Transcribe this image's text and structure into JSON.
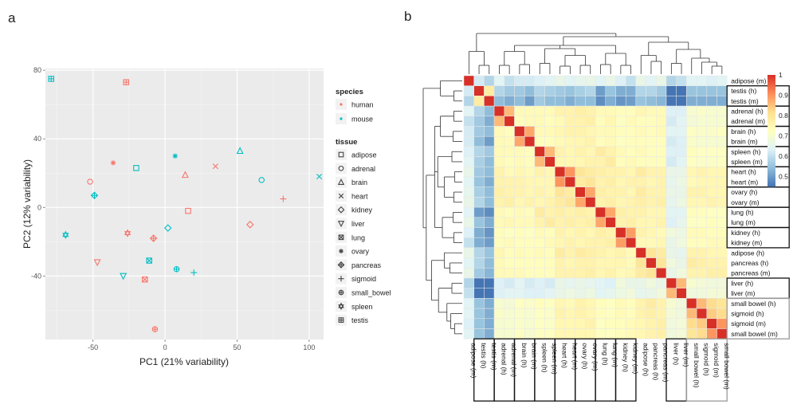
{
  "panels": {
    "a": "a",
    "b": "b"
  },
  "chart_data": [
    {
      "type": "scatter",
      "xlabel": "PC1 (21% variability)",
      "ylabel": "PC2 (12% variability)",
      "xlim": [
        -83,
        110
      ],
      "ylim": [
        -77,
        81
      ],
      "xticks": [
        -50,
        0,
        50,
        100
      ],
      "yticks": [
        -40,
        0,
        40,
        80
      ],
      "grid": true,
      "legend_placement": "right",
      "colors": {
        "human": "#f8766d",
        "mouse": "#00bfc4",
        "panel_bg": "#ebebeb"
      },
      "legend": {
        "species_title": "species",
        "species": [
          "human",
          "mouse"
        ],
        "tissue_title": "tissue",
        "tissues": [
          {
            "name": "adipose",
            "shape": "square"
          },
          {
            "name": "adrenal",
            "shape": "circle"
          },
          {
            "name": "brain",
            "shape": "triangle"
          },
          {
            "name": "heart",
            "shape": "cross"
          },
          {
            "name": "kidney",
            "shape": "diamond"
          },
          {
            "name": "liver",
            "shape": "triangle-down"
          },
          {
            "name": "lung",
            "shape": "square-x"
          },
          {
            "name": "ovary",
            "shape": "asterisk"
          },
          {
            "name": "pancreas",
            "shape": "diamond-plus"
          },
          {
            "name": "sigmoid",
            "shape": "plus"
          },
          {
            "name": "small_bowel",
            "shape": "circle-plus"
          },
          {
            "name": "spleen",
            "shape": "star"
          },
          {
            "name": "testis",
            "shape": "square-plus"
          }
        ]
      },
      "points": [
        {
          "species": "human",
          "tissue": "adipose",
          "x": 16,
          "y": -2
        },
        {
          "species": "mouse",
          "tissue": "adipose",
          "x": -20,
          "y": 23
        },
        {
          "species": "human",
          "tissue": "adrenal",
          "x": -52,
          "y": 15
        },
        {
          "species": "mouse",
          "tissue": "adrenal",
          "x": 67,
          "y": 16
        },
        {
          "species": "human",
          "tissue": "brain",
          "x": 14,
          "y": 19
        },
        {
          "species": "mouse",
          "tissue": "brain",
          "x": 52,
          "y": 33
        },
        {
          "species": "human",
          "tissue": "heart",
          "x": 35,
          "y": 24
        },
        {
          "species": "mouse",
          "tissue": "heart",
          "x": 107,
          "y": 18
        },
        {
          "species": "human",
          "tissue": "kidney",
          "x": 59,
          "y": -10
        },
        {
          "species": "mouse",
          "tissue": "kidney",
          "x": 2,
          "y": -12
        },
        {
          "species": "human",
          "tissue": "liver",
          "x": -47,
          "y": -32
        },
        {
          "species": "mouse",
          "tissue": "liver",
          "x": -29,
          "y": -40
        },
        {
          "species": "human",
          "tissue": "lung",
          "x": -14,
          "y": -42
        },
        {
          "species": "mouse",
          "tissue": "lung",
          "x": -11,
          "y": -31
        },
        {
          "species": "human",
          "tissue": "ovary",
          "x": -36,
          "y": 26
        },
        {
          "species": "mouse",
          "tissue": "ovary",
          "x": 7,
          "y": 30
        },
        {
          "species": "human",
          "tissue": "pancreas",
          "x": -8,
          "y": -18
        },
        {
          "species": "mouse",
          "tissue": "pancreas",
          "x": -49,
          "y": 7
        },
        {
          "species": "human",
          "tissue": "sigmoid",
          "x": 82,
          "y": 5
        },
        {
          "species": "mouse",
          "tissue": "sigmoid",
          "x": 20,
          "y": -38
        },
        {
          "species": "human",
          "tissue": "small_bowel",
          "x": -7,
          "y": -71
        },
        {
          "species": "mouse",
          "tissue": "small_bowel",
          "x": 8,
          "y": -36
        },
        {
          "species": "human",
          "tissue": "spleen",
          "x": -26,
          "y": -15
        },
        {
          "species": "mouse",
          "tissue": "spleen",
          "x": -69,
          "y": -16
        },
        {
          "species": "human",
          "tissue": "testis",
          "x": -27,
          "y": 73
        },
        {
          "species": "mouse",
          "tissue": "testis",
          "x": -79,
          "y": 75
        }
      ]
    },
    {
      "type": "heatmap",
      "rows": [
        "adipose (m)",
        "testis (h)",
        "testis (m)",
        "adrenal (h)",
        "adrenal (m)",
        "brain (h)",
        "brain (m)",
        "spleen (h)",
        "spleen (m)",
        "heart (h)",
        "heart (m)",
        "ovary (h)",
        "ovary (m)",
        "lung (h)",
        "lung (m)",
        "kidney (h)",
        "kidney (m)",
        "adipose (h)",
        "pancreas (h)",
        "pancreas (m)",
        "liver (h)",
        "liver (m)",
        "small bowel (h)",
        "sigmoid (h)",
        "sigmoid (m)",
        "small bowel (m)"
      ],
      "columns": [
        "adipose (m)",
        "testis (h)",
        "testis (m)",
        "adrenal (h)",
        "adrenal (m)",
        "brain (h)",
        "brain (m)",
        "spleen (h)",
        "spleen (m)",
        "heart (h)",
        "heart (m)",
        "ovary (h)",
        "ovary (m)",
        "lung (h)",
        "lung (m)",
        "kidney (h)",
        "kidney (m)",
        "adipose (h)",
        "pancreas (h)",
        "pancreas (m)",
        "liver (h)",
        "liver (m)",
        "small bowel (h)",
        "sigmoid (h)",
        "sigmoid (m)",
        "small bowel (m)"
      ],
      "values": [
        [
          1.0,
          0.62,
          0.58,
          0.64,
          0.6,
          0.62,
          0.62,
          0.63,
          0.64,
          0.66,
          0.64,
          0.65,
          0.66,
          0.64,
          0.66,
          0.63,
          0.6,
          0.66,
          0.64,
          0.66,
          0.58,
          0.6,
          0.64,
          0.64,
          0.63,
          0.64
        ],
        [
          0.62,
          1.0,
          0.78,
          0.58,
          0.56,
          0.56,
          0.54,
          0.58,
          0.57,
          0.56,
          0.55,
          0.57,
          0.58,
          0.5,
          0.55,
          0.52,
          0.52,
          0.58,
          0.58,
          0.56,
          0.42,
          0.44,
          0.55,
          0.55,
          0.55,
          0.55
        ],
        [
          0.58,
          0.78,
          1.0,
          0.54,
          0.52,
          0.54,
          0.5,
          0.56,
          0.54,
          0.54,
          0.52,
          0.54,
          0.54,
          0.48,
          0.52,
          0.49,
          0.5,
          0.55,
          0.54,
          0.53,
          0.4,
          0.42,
          0.52,
          0.52,
          0.52,
          0.52
        ],
        [
          0.64,
          0.58,
          0.54,
          1.0,
          0.86,
          0.74,
          0.74,
          0.74,
          0.74,
          0.76,
          0.76,
          0.77,
          0.76,
          0.74,
          0.74,
          0.73,
          0.73,
          0.75,
          0.74,
          0.74,
          0.63,
          0.63,
          0.7,
          0.71,
          0.7,
          0.7
        ],
        [
          0.6,
          0.56,
          0.52,
          0.86,
          1.0,
          0.73,
          0.74,
          0.74,
          0.73,
          0.74,
          0.76,
          0.76,
          0.77,
          0.73,
          0.75,
          0.72,
          0.74,
          0.73,
          0.73,
          0.74,
          0.62,
          0.64,
          0.69,
          0.7,
          0.7,
          0.7
        ],
        [
          0.62,
          0.56,
          0.54,
          0.74,
          0.73,
          1.0,
          0.88,
          0.74,
          0.74,
          0.75,
          0.76,
          0.76,
          0.75,
          0.74,
          0.74,
          0.73,
          0.73,
          0.74,
          0.73,
          0.74,
          0.64,
          0.64,
          0.72,
          0.71,
          0.71,
          0.72
        ],
        [
          0.62,
          0.54,
          0.5,
          0.74,
          0.74,
          0.88,
          1.0,
          0.73,
          0.73,
          0.74,
          0.75,
          0.75,
          0.76,
          0.73,
          0.74,
          0.72,
          0.73,
          0.73,
          0.73,
          0.73,
          0.62,
          0.63,
          0.71,
          0.7,
          0.7,
          0.7
        ],
        [
          0.63,
          0.58,
          0.56,
          0.74,
          0.74,
          0.74,
          0.73,
          1.0,
          0.86,
          0.76,
          0.75,
          0.76,
          0.75,
          0.78,
          0.76,
          0.74,
          0.73,
          0.74,
          0.73,
          0.73,
          0.63,
          0.63,
          0.73,
          0.72,
          0.72,
          0.72
        ],
        [
          0.64,
          0.57,
          0.54,
          0.74,
          0.73,
          0.74,
          0.73,
          0.86,
          1.0,
          0.75,
          0.75,
          0.75,
          0.76,
          0.76,
          0.78,
          0.73,
          0.74,
          0.73,
          0.73,
          0.73,
          0.62,
          0.64,
          0.72,
          0.71,
          0.71,
          0.72
        ],
        [
          0.66,
          0.56,
          0.54,
          0.76,
          0.74,
          0.75,
          0.74,
          0.76,
          0.75,
          1.0,
          0.9,
          0.8,
          0.78,
          0.77,
          0.76,
          0.76,
          0.75,
          0.78,
          0.76,
          0.76,
          0.66,
          0.66,
          0.75,
          0.76,
          0.75,
          0.75
        ],
        [
          0.64,
          0.55,
          0.52,
          0.76,
          0.76,
          0.76,
          0.75,
          0.75,
          0.75,
          0.9,
          1.0,
          0.78,
          0.8,
          0.76,
          0.77,
          0.75,
          0.76,
          0.76,
          0.75,
          0.76,
          0.65,
          0.67,
          0.74,
          0.75,
          0.75,
          0.75
        ],
        [
          0.65,
          0.57,
          0.54,
          0.77,
          0.76,
          0.76,
          0.75,
          0.76,
          0.75,
          0.8,
          0.78,
          1.0,
          0.88,
          0.77,
          0.76,
          0.76,
          0.75,
          0.78,
          0.76,
          0.76,
          0.66,
          0.66,
          0.76,
          0.76,
          0.75,
          0.75
        ],
        [
          0.66,
          0.58,
          0.54,
          0.76,
          0.77,
          0.75,
          0.76,
          0.75,
          0.76,
          0.78,
          0.8,
          0.88,
          1.0,
          0.76,
          0.77,
          0.75,
          0.76,
          0.77,
          0.76,
          0.77,
          0.65,
          0.67,
          0.75,
          0.75,
          0.76,
          0.75
        ],
        [
          0.64,
          0.5,
          0.48,
          0.74,
          0.73,
          0.74,
          0.73,
          0.78,
          0.76,
          0.77,
          0.76,
          0.77,
          0.76,
          1.0,
          0.88,
          0.77,
          0.76,
          0.76,
          0.75,
          0.75,
          0.64,
          0.64,
          0.73,
          0.73,
          0.72,
          0.72
        ],
        [
          0.66,
          0.55,
          0.52,
          0.74,
          0.75,
          0.74,
          0.74,
          0.76,
          0.78,
          0.76,
          0.77,
          0.76,
          0.77,
          0.88,
          1.0,
          0.76,
          0.77,
          0.75,
          0.75,
          0.76,
          0.63,
          0.65,
          0.72,
          0.72,
          0.73,
          0.72
        ],
        [
          0.63,
          0.52,
          0.49,
          0.73,
          0.72,
          0.73,
          0.72,
          0.74,
          0.73,
          0.76,
          0.75,
          0.76,
          0.75,
          0.77,
          0.76,
          1.0,
          0.89,
          0.76,
          0.75,
          0.74,
          0.68,
          0.67,
          0.74,
          0.74,
          0.73,
          0.73
        ],
        [
          0.6,
          0.52,
          0.5,
          0.73,
          0.74,
          0.73,
          0.73,
          0.73,
          0.74,
          0.75,
          0.76,
          0.75,
          0.76,
          0.76,
          0.77,
          0.89,
          1.0,
          0.74,
          0.74,
          0.75,
          0.66,
          0.68,
          0.73,
          0.73,
          0.74,
          0.74
        ],
        [
          0.66,
          0.58,
          0.55,
          0.75,
          0.73,
          0.74,
          0.73,
          0.74,
          0.73,
          0.78,
          0.76,
          0.78,
          0.77,
          0.76,
          0.75,
          0.76,
          0.74,
          1.0,
          0.8,
          0.78,
          0.66,
          0.65,
          0.76,
          0.76,
          0.75,
          0.75
        ],
        [
          0.64,
          0.58,
          0.54,
          0.74,
          0.73,
          0.73,
          0.73,
          0.73,
          0.73,
          0.76,
          0.75,
          0.76,
          0.76,
          0.75,
          0.75,
          0.75,
          0.74,
          0.8,
          1.0,
          0.8,
          0.68,
          0.66,
          0.78,
          0.77,
          0.76,
          0.76
        ],
        [
          0.66,
          0.56,
          0.53,
          0.74,
          0.74,
          0.74,
          0.73,
          0.73,
          0.73,
          0.76,
          0.76,
          0.76,
          0.77,
          0.75,
          0.76,
          0.74,
          0.75,
          0.78,
          0.8,
          1.0,
          0.66,
          0.68,
          0.76,
          0.76,
          0.77,
          0.77
        ],
        [
          0.58,
          0.42,
          0.4,
          0.63,
          0.62,
          0.64,
          0.62,
          0.63,
          0.62,
          0.66,
          0.65,
          0.66,
          0.65,
          0.64,
          0.63,
          0.68,
          0.66,
          0.66,
          0.68,
          0.66,
          1.0,
          0.86,
          0.7,
          0.69,
          0.68,
          0.68
        ],
        [
          0.6,
          0.44,
          0.42,
          0.63,
          0.64,
          0.64,
          0.63,
          0.63,
          0.64,
          0.66,
          0.67,
          0.66,
          0.67,
          0.64,
          0.65,
          0.67,
          0.68,
          0.65,
          0.66,
          0.68,
          0.86,
          1.0,
          0.68,
          0.68,
          0.69,
          0.69
        ],
        [
          0.64,
          0.55,
          0.52,
          0.7,
          0.69,
          0.72,
          0.71,
          0.73,
          0.72,
          0.75,
          0.74,
          0.76,
          0.75,
          0.73,
          0.72,
          0.74,
          0.73,
          0.76,
          0.78,
          0.76,
          0.7,
          0.68,
          1.0,
          0.86,
          0.82,
          0.8
        ],
        [
          0.64,
          0.55,
          0.52,
          0.71,
          0.7,
          0.71,
          0.7,
          0.72,
          0.71,
          0.76,
          0.75,
          0.76,
          0.75,
          0.73,
          0.72,
          0.74,
          0.73,
          0.76,
          0.77,
          0.76,
          0.69,
          0.68,
          0.86,
          1.0,
          0.84,
          0.82
        ],
        [
          0.63,
          0.55,
          0.52,
          0.7,
          0.7,
          0.71,
          0.7,
          0.72,
          0.71,
          0.75,
          0.75,
          0.75,
          0.76,
          0.72,
          0.73,
          0.73,
          0.74,
          0.75,
          0.76,
          0.77,
          0.68,
          0.69,
          0.82,
          0.84,
          1.0,
          0.9
        ],
        [
          0.64,
          0.55,
          0.52,
          0.7,
          0.7,
          0.72,
          0.7,
          0.72,
          0.72,
          0.75,
          0.75,
          0.75,
          0.75,
          0.72,
          0.72,
          0.73,
          0.74,
          0.75,
          0.76,
          0.77,
          0.68,
          0.69,
          0.8,
          0.82,
          0.9,
          1.0
        ]
      ],
      "boxed_groups": [
        [
          1,
          2
        ],
        [
          3,
          4
        ],
        [
          5,
          6
        ],
        [
          7,
          8
        ],
        [
          9,
          10
        ],
        [
          11,
          12
        ],
        [
          13,
          14
        ],
        [
          15,
          16
        ],
        [
          20,
          21
        ],
        [
          22,
          25
        ]
      ],
      "colorbar": {
        "ticks": [
          1,
          0.9,
          0.8,
          0.7,
          0.6,
          0.5
        ],
        "range": [
          0.45,
          1.0
        ],
        "colors": [
          "#4575b4",
          "#91bfdb",
          "#e0f3f8",
          "#ffffbf",
          "#fee090",
          "#fc8d59",
          "#d73027"
        ]
      }
    }
  ]
}
